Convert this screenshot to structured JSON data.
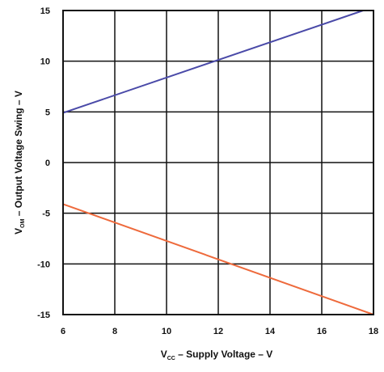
{
  "chart_data": {
    "type": "line",
    "xlabel": {
      "main": "V",
      "sub": "CC",
      "rest": " – Supply Voltage – V"
    },
    "ylabel": {
      "main": "V",
      "sub": "OM",
      "rest": " – Output Voltage Swing – V"
    },
    "xlim": [
      6,
      18
    ],
    "ylim": [
      -15,
      15
    ],
    "x_ticks": [
      6,
      8,
      10,
      12,
      14,
      16,
      18
    ],
    "y_ticks": [
      15,
      10,
      5,
      0,
      -5,
      -10,
      -15
    ],
    "grid": true,
    "legend": "none",
    "series": [
      {
        "color": "#4a4aa8",
        "x": [
          6,
          17.6
        ],
        "y": [
          4.9,
          15
        ]
      },
      {
        "color": "#ee6a3c",
        "x": [
          6,
          18
        ],
        "y": [
          -4.1,
          -15
        ]
      }
    ]
  }
}
